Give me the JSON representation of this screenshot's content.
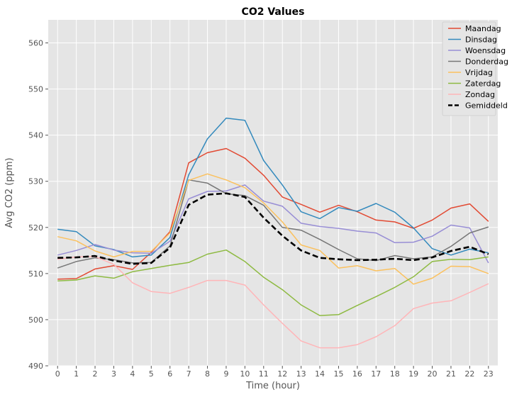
{
  "chart_data": {
    "type": "line",
    "title": "CO2 Values",
    "xlabel": "Time (hour)",
    "ylabel": "Avg CO2 (ppm)",
    "x": [
      0,
      1,
      2,
      3,
      4,
      5,
      6,
      7,
      8,
      9,
      10,
      11,
      12,
      13,
      14,
      15,
      16,
      17,
      18,
      19,
      20,
      21,
      22,
      23
    ],
    "xlim": [
      -0.5,
      23.5
    ],
    "ylim": [
      490,
      565
    ],
    "yticks": [
      490,
      500,
      510,
      520,
      530,
      540,
      550,
      560
    ],
    "grid": true,
    "legend_position": "top-right",
    "series": [
      {
        "name": "Maandag",
        "color": "#E24A33",
        "style": "solid",
        "values": [
          508.8,
          508.9,
          511.0,
          511.7,
          510.9,
          514.6,
          519.1,
          534.0,
          536.2,
          537.1,
          535.0,
          531.3,
          526.6,
          525.0,
          523.3,
          524.8,
          523.4,
          521.6,
          521.2,
          519.8,
          521.6,
          524.2,
          525.1,
          521.3
        ]
      },
      {
        "name": "Dinsdag",
        "color": "#348ABD",
        "style": "solid",
        "values": [
          519.6,
          519.1,
          516.0,
          515.2,
          513.6,
          514.0,
          517.8,
          531.4,
          539.2,
          543.7,
          543.2,
          534.5,
          529.2,
          523.4,
          521.9,
          524.3,
          523.5,
          525.2,
          523.3,
          519.9,
          515.4,
          514.0,
          515.3,
          514.5
        ]
      },
      {
        "name": "Woensdag",
        "color": "#988ED5",
        "style": "solid",
        "values": [
          514.0,
          515.0,
          516.3,
          515.1,
          514.5,
          514.4,
          517.0,
          526.2,
          527.8,
          527.9,
          529.2,
          525.7,
          524.6,
          520.9,
          520.2,
          519.8,
          519.2,
          518.8,
          516.7,
          516.8,
          518.1,
          520.5,
          519.9,
          512.3
        ]
      },
      {
        "name": "Donderdag",
        "color": "#777777",
        "style": "solid",
        "values": [
          511.2,
          512.6,
          513.4,
          513.0,
          512.3,
          512.4,
          516.0,
          530.3,
          529.6,
          527.3,
          526.9,
          524.8,
          520.0,
          519.4,
          517.4,
          515.2,
          513.2,
          512.8,
          513.9,
          513.2,
          513.6,
          515.9,
          518.8,
          520.1
        ]
      },
      {
        "name": "Vrijdag",
        "color": "#FBC15E",
        "style": "solid",
        "values": [
          518.0,
          517.1,
          514.9,
          513.6,
          514.8,
          514.8,
          518.8,
          530.2,
          531.6,
          530.3,
          528.6,
          525.3,
          521.2,
          516.2,
          515.0,
          511.2,
          511.7,
          510.6,
          511.1,
          507.7,
          509.0,
          511.6,
          511.5,
          510.0
        ]
      },
      {
        "name": "Zaterdag",
        "color": "#8EBA42",
        "style": "solid",
        "values": [
          508.4,
          508.6,
          509.5,
          509.0,
          510.4,
          511.1,
          511.8,
          512.4,
          514.2,
          515.1,
          512.6,
          509.2,
          506.5,
          503.2,
          500.9,
          501.1,
          503.1,
          505.0,
          507.0,
          509.3,
          512.6,
          513.1,
          513.0,
          513.6
        ]
      },
      {
        "name": "Zondag",
        "color": "#FFB5B8",
        "style": "solid",
        "values": [
          513.1,
          513.6,
          513.7,
          512.0,
          508.0,
          506.1,
          505.7,
          507.0,
          508.5,
          508.5,
          507.5,
          503.2,
          499.2,
          495.4,
          493.9,
          493.9,
          494.6,
          496.3,
          498.7,
          502.4,
          503.6,
          504.1,
          505.9,
          507.8
        ]
      },
      {
        "name": "Gemiddeld",
        "color": "#000000",
        "style": "dashed",
        "values": [
          513.4,
          513.5,
          513.8,
          512.8,
          512.1,
          512.3,
          515.6,
          524.9,
          527.1,
          527.4,
          526.6,
          522.1,
          518.2,
          515.0,
          513.4,
          513.1,
          512.9,
          513.0,
          513.2,
          512.9,
          513.5,
          514.9,
          515.8,
          514.2
        ]
      }
    ]
  }
}
